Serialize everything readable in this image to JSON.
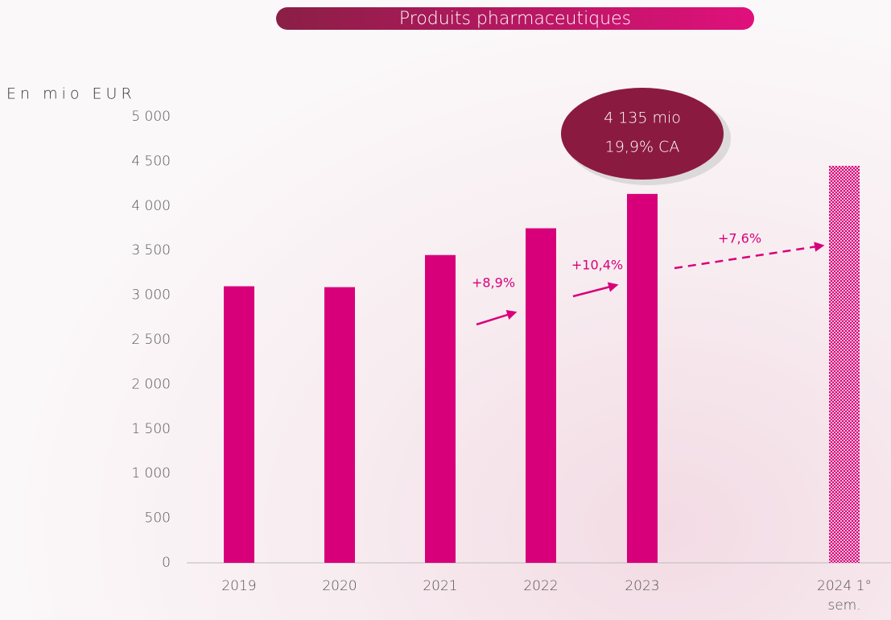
{
  "chart_data": {
    "type": "bar",
    "title": "Produits pharmaceutiques",
    "y_axis_label": "En mio EUR",
    "categories": [
      "2019",
      "2020",
      "2021",
      "2022",
      "2023",
      "2024 1° sem."
    ],
    "values": [
      3100,
      3090,
      3450,
      3750,
      4135,
      4450
    ],
    "color": "#d8007a",
    "bar_styles": [
      "solid",
      "solid",
      "solid",
      "solid",
      "solid",
      "pattern"
    ],
    "ylim": [
      0,
      5000
    ],
    "yticks": [
      0,
      500,
      {
        "value": 1000,
        "label": "1 000"
      },
      {
        "value": 1500,
        "label": "1 500"
      },
      {
        "value": 2000,
        "label": "2 000"
      },
      {
        "value": 2500,
        "label": "2 500"
      },
      {
        "value": 3000,
        "label": "3 000"
      },
      {
        "value": 3500,
        "label": "3 500"
      },
      {
        "value": 4000,
        "label": "4 000"
      },
      {
        "value": 4500,
        "label": "4 500"
      },
      {
        "value": 5000,
        "label": "5 000"
      }
    ],
    "callout": [
      "4 135 mio",
      "19,9% CA"
    ],
    "annotations": [
      "+8,9%",
      "+10,4%",
      "+7,6%"
    ]
  }
}
